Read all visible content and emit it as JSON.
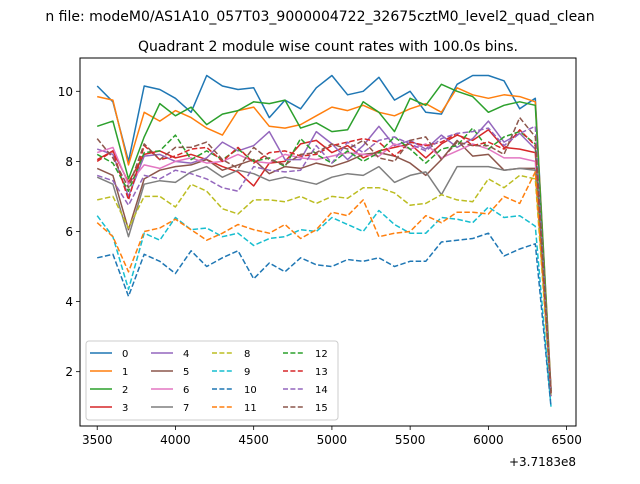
{
  "figure": {
    "suptitle": "n file: modeM0/AS1A10_057T03_9000004722_32675cztM0_level2_quad_clean",
    "title": "Quadrant 2 module wise count rates with 100.0s bins.",
    "x_offset_label": "+3.7183e8"
  },
  "chart_data": {
    "type": "line",
    "title": "Quadrant 2 module wise count rates with 100.0s bins.",
    "xlabel": "",
    "ylabel": "",
    "x_offset": "+3.7183e8",
    "xlim": [
      3390,
      6560
    ],
    "ylim": [
      0.45,
      10.95
    ],
    "xticks": [
      3500,
      4000,
      4500,
      5000,
      5500,
      6000,
      6500
    ],
    "xtick_labels": [
      "3500",
      "4000",
      "4500",
      "5000",
      "5500",
      "6000",
      "6500"
    ],
    "yticks": [
      2,
      4,
      6,
      8,
      10
    ],
    "ytick_labels": [
      "2",
      "4",
      "6",
      "8",
      "10"
    ],
    "grid": false,
    "legend_position": "lower-left",
    "legend_columns": 4,
    "x": [
      3500,
      3600,
      3700,
      3800,
      3900,
      4000,
      4100,
      4200,
      4300,
      4400,
      4500,
      4600,
      4700,
      4800,
      4900,
      5000,
      5100,
      5200,
      5300,
      5400,
      5500,
      5600,
      5700,
      5800,
      5900,
      6000,
      6100,
      6200,
      6300,
      6400
    ],
    "series": [
      {
        "name": "0",
        "color": "#1f77b4",
        "dash": "solid",
        "values": [
          10.15,
          9.7,
          8.0,
          10.15,
          10.05,
          9.8,
          9.4,
          10.45,
          10.15,
          10.05,
          10.1,
          9.25,
          9.75,
          9.5,
          10.1,
          10.45,
          9.9,
          10.0,
          10.4,
          9.75,
          10.0,
          9.4,
          9.35,
          10.2,
          10.45,
          10.45,
          10.3,
          9.5,
          9.8,
          1.5
        ]
      },
      {
        "name": "1",
        "color": "#ff7f0e",
        "dash": "solid",
        "values": [
          9.85,
          9.75,
          7.9,
          9.4,
          9.15,
          9.45,
          9.25,
          8.95,
          8.75,
          9.45,
          9.55,
          9.0,
          8.95,
          9.05,
          9.3,
          9.55,
          9.45,
          9.6,
          9.4,
          9.3,
          9.5,
          9.65,
          9.4,
          10.1,
          9.9,
          9.8,
          9.9,
          9.85,
          9.7,
          1.5
        ]
      },
      {
        "name": "2",
        "color": "#2ca02c",
        "dash": "solid",
        "values": [
          9.0,
          9.15,
          7.5,
          8.7,
          9.65,
          9.3,
          9.55,
          9.05,
          9.35,
          9.45,
          9.7,
          9.65,
          9.75,
          8.95,
          9.1,
          8.85,
          8.9,
          9.7,
          9.4,
          8.85,
          9.8,
          9.6,
          10.2,
          10.0,
          9.85,
          9.4,
          9.6,
          9.7,
          9.6,
          1.4
        ]
      },
      {
        "name": "3",
        "color": "#d62728",
        "dash": "solid",
        "values": [
          8.05,
          8.3,
          7.4,
          8.2,
          8.3,
          8.1,
          8.2,
          8.05,
          7.85,
          7.7,
          7.3,
          7.95,
          8.0,
          8.5,
          8.6,
          8.25,
          8.45,
          8.1,
          8.3,
          8.4,
          8.5,
          8.1,
          8.5,
          8.75,
          8.6,
          8.9,
          8.4,
          8.35,
          8.25,
          1.5
        ]
      },
      {
        "name": "4",
        "color": "#9467bd",
        "dash": "solid",
        "values": [
          8.35,
          8.2,
          7.0,
          8.15,
          8.2,
          8.0,
          7.95,
          8.1,
          8.55,
          8.3,
          8.45,
          8.85,
          8.05,
          8.05,
          8.85,
          8.5,
          8.05,
          8.45,
          9.0,
          8.45,
          8.6,
          8.35,
          8.75,
          8.4,
          8.65,
          9.15,
          8.55,
          8.8,
          8.35,
          1.4
        ]
      },
      {
        "name": "5",
        "color": "#8c564b",
        "dash": "solid",
        "values": [
          7.8,
          7.6,
          6.05,
          7.5,
          7.75,
          7.85,
          7.9,
          8.05,
          7.75,
          7.9,
          8.05,
          7.65,
          7.85,
          7.8,
          7.95,
          7.85,
          8.0,
          8.2,
          8.25,
          8.15,
          7.95,
          7.6,
          8.05,
          8.6,
          8.15,
          8.2,
          7.75,
          7.8,
          7.8,
          1.45
        ]
      },
      {
        "name": "6",
        "color": "#e377c2",
        "dash": "solid",
        "values": [
          8.25,
          8.4,
          7.35,
          7.9,
          7.8,
          8.0,
          8.1,
          7.95,
          8.0,
          8.2,
          8.0,
          7.95,
          8.2,
          8.1,
          8.05,
          8.15,
          8.25,
          8.2,
          8.15,
          8.5,
          8.35,
          8.5,
          8.1,
          8.3,
          8.5,
          8.35,
          8.1,
          8.1,
          8.0,
          1.45
        ]
      },
      {
        "name": "7",
        "color": "#7f7f7f",
        "dash": "solid",
        "values": [
          7.55,
          7.35,
          5.85,
          7.35,
          7.45,
          7.4,
          7.7,
          7.85,
          7.55,
          7.75,
          7.65,
          7.45,
          7.55,
          7.45,
          7.35,
          7.55,
          7.65,
          7.6,
          7.85,
          7.4,
          7.6,
          7.7,
          7.05,
          7.85,
          7.85,
          7.85,
          7.75,
          7.8,
          7.75,
          1.4
        ]
      },
      {
        "name": "8",
        "color": "#bcbd22",
        "dash": "dashed",
        "values": [
          6.9,
          7.0,
          6.1,
          7.0,
          7.0,
          6.7,
          7.35,
          7.15,
          6.65,
          6.5,
          6.9,
          6.9,
          6.85,
          7.0,
          6.8,
          7.0,
          6.95,
          7.25,
          7.25,
          7.1,
          6.75,
          6.8,
          7.05,
          6.9,
          6.85,
          7.5,
          7.25,
          7.6,
          7.5,
          1.3
        ]
      },
      {
        "name": "9",
        "color": "#17becf",
        "dash": "dashed",
        "values": [
          6.45,
          5.85,
          4.35,
          5.95,
          5.75,
          6.4,
          6.05,
          6.1,
          5.85,
          5.95,
          5.6,
          5.8,
          5.85,
          6.05,
          6.0,
          6.4,
          6.2,
          6.0,
          6.6,
          6.2,
          5.95,
          5.95,
          6.4,
          6.35,
          6.25,
          6.7,
          6.4,
          6.45,
          6.15,
          1.0
        ]
      },
      {
        "name": "10",
        "color": "#1f77b4",
        "dash": "dashed",
        "values": [
          5.25,
          5.35,
          4.15,
          5.35,
          5.15,
          4.8,
          5.45,
          5.0,
          5.25,
          5.45,
          4.65,
          5.1,
          4.85,
          5.25,
          5.05,
          5.0,
          5.2,
          5.15,
          5.25,
          5.0,
          5.15,
          5.15,
          5.7,
          5.75,
          5.8,
          5.95,
          5.3,
          5.5,
          5.65,
          1.0
        ]
      },
      {
        "name": "11",
        "color": "#ff7f0e",
        "dash": "dashed",
        "values": [
          6.25,
          5.85,
          4.85,
          6.0,
          6.1,
          6.35,
          6.05,
          5.75,
          5.95,
          6.2,
          6.05,
          5.95,
          6.2,
          5.8,
          6.05,
          6.55,
          6.45,
          6.9,
          5.85,
          5.95,
          6.0,
          6.45,
          6.25,
          6.55,
          6.55,
          6.5,
          7.0,
          6.8,
          7.7,
          1.4
        ]
      },
      {
        "name": "12",
        "color": "#2ca02c",
        "dash": "dashed",
        "values": [
          8.2,
          7.95,
          7.15,
          8.25,
          8.3,
          8.75,
          8.05,
          8.3,
          8.05,
          8.35,
          8.0,
          8.1,
          7.85,
          8.65,
          8.2,
          7.95,
          8.3,
          8.0,
          8.25,
          8.7,
          8.35,
          7.95,
          8.35,
          8.45,
          8.95,
          8.35,
          8.7,
          8.85,
          8.5,
          1.45
        ]
      },
      {
        "name": "13",
        "color": "#d62728",
        "dash": "dashed",
        "values": [
          8.0,
          8.3,
          6.9,
          8.45,
          8.05,
          8.15,
          8.35,
          8.4,
          8.0,
          8.4,
          7.95,
          8.25,
          8.3,
          8.15,
          8.2,
          8.45,
          8.55,
          8.65,
          8.55,
          8.15,
          8.55,
          8.45,
          8.55,
          8.8,
          8.45,
          8.55,
          8.35,
          8.9,
          8.45,
          1.4
        ]
      },
      {
        "name": "14",
        "color": "#9467bd",
        "dash": "dashed",
        "values": [
          7.6,
          7.45,
          6.75,
          7.6,
          7.5,
          7.75,
          7.65,
          7.5,
          7.25,
          7.15,
          7.85,
          7.75,
          7.7,
          7.75,
          8.45,
          7.95,
          8.55,
          8.25,
          8.6,
          8.7,
          8.5,
          8.3,
          8.65,
          8.8,
          8.85,
          8.95,
          8.45,
          8.8,
          9.0,
          1.3
        ]
      },
      {
        "name": "15",
        "color": "#8c564b",
        "dash": "dashed",
        "values": [
          8.65,
          8.1,
          7.25,
          8.5,
          8.05,
          8.4,
          8.4,
          8.55,
          8.05,
          7.8,
          8.4,
          8.05,
          7.9,
          8.2,
          8.25,
          8.5,
          8.35,
          8.6,
          8.1,
          8.0,
          8.6,
          8.7,
          8.05,
          8.55,
          8.45,
          8.45,
          8.2,
          9.25,
          8.7,
          1.35
        ]
      }
    ]
  }
}
